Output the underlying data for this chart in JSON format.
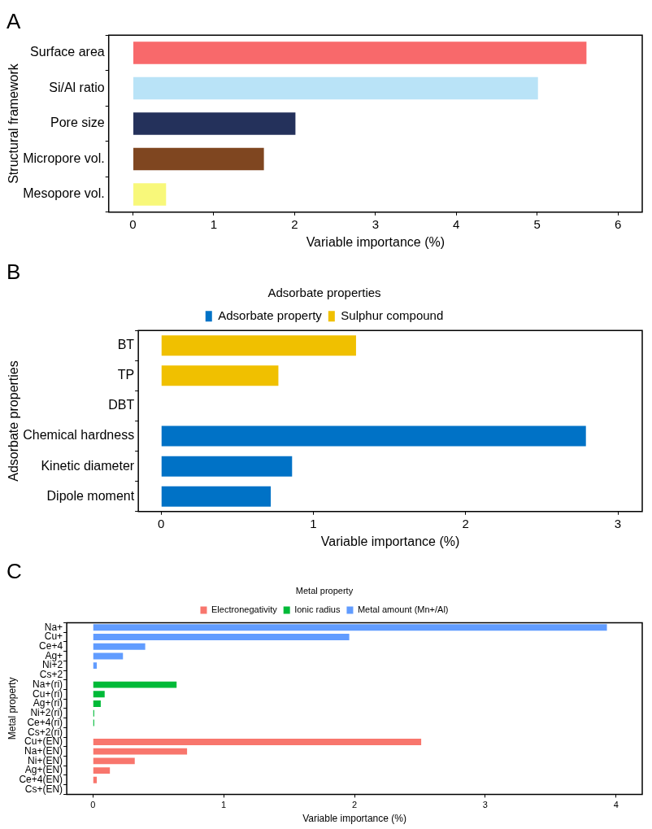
{
  "chart_data": [
    {
      "type": "bar",
      "title": "A",
      "orientation": "horizontal",
      "xlabel": "Variable importance (%)",
      "ylabel": "Structural framework",
      "categories": [
        "Surface area",
        "Si/Al ratio",
        "Pore size",
        "Micropore vol.",
        "Mesopore vol."
      ],
      "values": [
        5.61,
        5.01,
        2.01,
        1.62,
        0.41
      ],
      "colors": [
        "#f8696b",
        "#b9e3f7",
        "#24315b",
        "#7f4620",
        "#f8f87a"
      ],
      "xlim": [
        -0.3,
        6.3
      ],
      "xticks": [
        0,
        1,
        2,
        3,
        4,
        5,
        6
      ],
      "grid": false,
      "legend": false
    },
    {
      "type": "bar",
      "title": "B",
      "orientation": "horizontal",
      "xlabel": "Variable importance (%)",
      "ylabel": "Adsorbate properties",
      "legend_title": "Adsorbate properties",
      "legend": "top",
      "categories": [
        "BT",
        "TP",
        "DBT",
        "Chemical hardness",
        "Kinetic diameter",
        "Dipole moment"
      ],
      "series": [
        {
          "name": "Adsorbate property",
          "color": "#0072c6",
          "values": [
            null,
            null,
            null,
            2.79,
            0.86,
            0.72
          ]
        },
        {
          "name": "Sulphur compound",
          "color": "#f0c000",
          "values": [
            1.28,
            0.77,
            0,
            null,
            null,
            null
          ]
        }
      ],
      "xlim": [
        -0.15,
        3.16
      ],
      "xticks": [
        0,
        1,
        2,
        3
      ],
      "grid": false
    },
    {
      "type": "bar",
      "title": "C",
      "orientation": "horizontal",
      "xlabel": "Variable importance (%)",
      "ylabel": "Metal property",
      "legend_title": "Metal property",
      "legend": "top",
      "categories": [
        "Na+",
        "Cu+",
        "Ce+4",
        "Ag+",
        "Ni+2",
        "Cs+2",
        "Na+(ri)",
        "Cu+(ri)",
        "Ag+(ri)",
        "Ni+2(ri)",
        "Ce+4(ri)",
        "Cs+2(ri)",
        "Cu+(EN)",
        "Na+(EN)",
        "Ni+(EN)",
        "Ag+(EN)",
        "Ce+4(EN)",
        "Cs+(EN)"
      ],
      "series": [
        {
          "name": "Electronegativity",
          "color": "#f8766d",
          "values": [
            null,
            null,
            null,
            null,
            null,
            null,
            null,
            null,
            null,
            null,
            null,
            null,
            2.51,
            0.72,
            0.32,
            0.13,
            0.03,
            0
          ]
        },
        {
          "name": "Ionic radius",
          "color": "#00ba38",
          "values": [
            null,
            null,
            null,
            null,
            null,
            null,
            0.64,
            0.09,
            0.06,
            0.01,
            0.01,
            0,
            null,
            null,
            null,
            null,
            null,
            null
          ]
        },
        {
          "name": "Metal amount (Mn+/Al)",
          "color": "#619cff",
          "values": [
            3.93,
            1.96,
            0.4,
            0.23,
            0.03,
            0,
            null,
            null,
            null,
            null,
            null,
            null,
            null,
            null,
            null,
            null,
            null,
            null
          ]
        }
      ],
      "xlim": [
        -0.2,
        4.2
      ],
      "xticks": [
        0,
        1,
        2,
        3,
        4
      ],
      "grid": false
    }
  ]
}
